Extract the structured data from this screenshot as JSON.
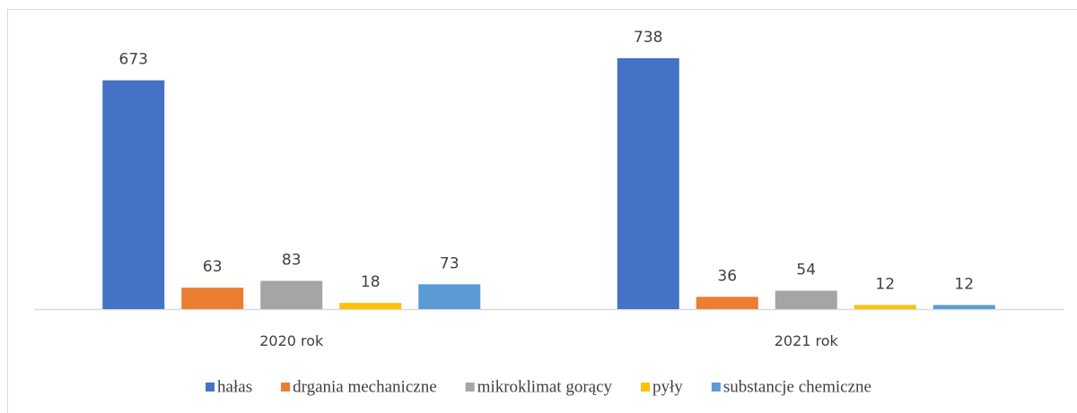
{
  "chart_data": {
    "type": "bar",
    "categories": [
      "2020 rok",
      "2021 rok"
    ],
    "series": [
      {
        "name": "hałas",
        "color": "#4472c4",
        "values": [
          673,
          738
        ]
      },
      {
        "name": "drgania mechaniczne",
        "color": "#ed7d31",
        "values": [
          63,
          36
        ]
      },
      {
        "name": "mikroklimat gorący",
        "color": "#a5a5a5",
        "values": [
          83,
          54
        ]
      },
      {
        "name": "pyły",
        "color": "#ffc000",
        "values": [
          18,
          12
        ]
      },
      {
        "name": "substancje chemiczne",
        "color": "#5b9bd5",
        "values": [
          73,
          12
        ]
      }
    ]
  }
}
